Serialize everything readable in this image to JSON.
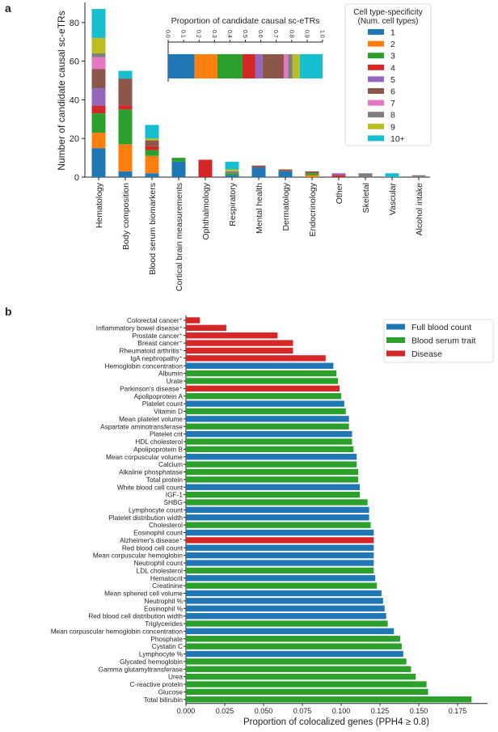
{
  "chart_data": [
    {
      "panel_label": "a",
      "type": "bar",
      "stacked": true,
      "ylabel": "Number of candidate causal sc-eTRs",
      "ylim": [
        0,
        90
      ],
      "yticks": [
        "0",
        "20",
        "40",
        "60",
        "80"
      ],
      "categories": [
        "Hematology",
        "Body composition",
        "Blood serum biomarkers",
        "Cortical brain measurements",
        "Ophthalmology",
        "Respiratory",
        "Mental health",
        "Dermatology",
        "Endocrinology",
        "Other",
        "Skeletal",
        "Vascular",
        "Alcohol intake"
      ],
      "legend_title": [
        "Cell type-specificity",
        "(Num. cell types)"
      ],
      "legend_position": "top-right",
      "series": [
        {
          "name": "1",
          "color": "#1f77b4",
          "values": [
            15,
            3,
            2,
            8,
            0,
            1,
            5,
            3,
            0,
            0,
            0,
            0,
            0
          ]
        },
        {
          "name": "2",
          "color": "#ff7f0e",
          "values": [
            8,
            14,
            9,
            0,
            0,
            0,
            0,
            0,
            1,
            0,
            0,
            0,
            0
          ]
        },
        {
          "name": "3",
          "color": "#2ca02c",
          "values": [
            10,
            18,
            3,
            2,
            0,
            1,
            0,
            0,
            1,
            0,
            0,
            0,
            0
          ]
        },
        {
          "name": "4",
          "color": "#d62728",
          "values": [
            4,
            2,
            2,
            0,
            9,
            0,
            0,
            0,
            0,
            1,
            0,
            0,
            0
          ]
        },
        {
          "name": "5",
          "color": "#9467bd",
          "values": [
            9,
            0,
            0,
            0,
            0,
            0,
            0,
            0,
            0,
            1,
            0,
            0,
            0
          ]
        },
        {
          "name": "6",
          "color": "#8c564b",
          "values": [
            10,
            14,
            3,
            0,
            0,
            0,
            1,
            1,
            1,
            0,
            0,
            0,
            0
          ]
        },
        {
          "name": "7",
          "color": "#e377c2",
          "values": [
            6,
            0,
            0,
            0,
            0,
            0,
            0,
            0,
            0,
            0,
            0,
            0,
            0
          ]
        },
        {
          "name": "8",
          "color": "#7f7f7f",
          "values": [
            2,
            0,
            0,
            0,
            0,
            1,
            0,
            0,
            0,
            0,
            2,
            0,
            1
          ]
        },
        {
          "name": "9",
          "color": "#bcbd22",
          "values": [
            8,
            0,
            1,
            0,
            0,
            1,
            0,
            0,
            0,
            0,
            0,
            0,
            0
          ]
        },
        {
          "name": "10+",
          "color": "#17becf",
          "values": [
            15,
            4,
            7,
            0,
            0,
            4,
            0,
            0,
            0,
            0,
            0,
            2,
            0
          ]
        }
      ],
      "inset": {
        "type": "bar",
        "title": "Proportion of candidate causal sc-eTRs",
        "xlim": [
          0,
          1
        ],
        "xticks": [
          "0.0",
          "0.1",
          "0.2",
          "0.3",
          "0.4",
          "0.5",
          "0.6",
          "0.7",
          "0.8",
          "0.9",
          "1.0"
        ]
      }
    },
    {
      "panel_label": "b",
      "type": "bar",
      "orientation": "horizontal",
      "xlabel": "Proportion of colocalized genes (PPH4 ≥ 0.8)",
      "xlim": [
        0,
        0.19
      ],
      "xticks": [
        "0.000",
        "0.025",
        "0.050",
        "0.075",
        "0.100",
        "0.125",
        "0.150",
        "0.175"
      ],
      "legend_position": "top-right",
      "groups": [
        {
          "name": "Full blood count",
          "color": "#1f77b4"
        },
        {
          "name": "Blood serum trait",
          "color": "#2ca02c"
        },
        {
          "name": "Disease",
          "color": "#d62728"
        }
      ],
      "bars": [
        {
          "label": "Colorectal cancer⁺",
          "group": 2,
          "value": 0.009
        },
        {
          "label": "Inflammatory bowel disease⁺",
          "group": 2,
          "value": 0.026
        },
        {
          "label": "Prostate cancer⁺",
          "group": 2,
          "value": 0.059
        },
        {
          "label": "Breast cancer⁺",
          "group": 2,
          "value": 0.069
        },
        {
          "label": "Rheumatoid arthritis⁺",
          "group": 2,
          "value": 0.069
        },
        {
          "label": "IgA nephropathy⁺",
          "group": 2,
          "value": 0.09
        },
        {
          "label": "Hemoglobin concentration",
          "group": 0,
          "value": 0.095
        },
        {
          "label": "Albumin",
          "group": 1,
          "value": 0.097
        },
        {
          "label": "Urate",
          "group": 1,
          "value": 0.098
        },
        {
          "label": "Parkinson's disease⁺",
          "group": 2,
          "value": 0.099
        },
        {
          "label": "Apolipoprotein A",
          "group": 1,
          "value": 0.1
        },
        {
          "label": "Platelet count",
          "group": 0,
          "value": 0.102
        },
        {
          "label": "Vitamin D",
          "group": 1,
          "value": 0.103
        },
        {
          "label": "Mean platelet volume",
          "group": 0,
          "value": 0.105
        },
        {
          "label": "Aspartate aminotransferase",
          "group": 1,
          "value": 0.105
        },
        {
          "label": "Platelet crit",
          "group": 0,
          "value": 0.107
        },
        {
          "label": "HDL cholesterol",
          "group": 1,
          "value": 0.107
        },
        {
          "label": "Apolipoprotein B",
          "group": 1,
          "value": 0.108
        },
        {
          "label": "Mean corpuscular volume",
          "group": 0,
          "value": 0.11
        },
        {
          "label": "Calcium",
          "group": 1,
          "value": 0.11
        },
        {
          "label": "Alkaline phosphatase",
          "group": 1,
          "value": 0.111
        },
        {
          "label": "Total protein",
          "group": 1,
          "value": 0.111
        },
        {
          "label": "White blood cell count",
          "group": 0,
          "value": 0.112
        },
        {
          "label": "IGF-1",
          "group": 1,
          "value": 0.112
        },
        {
          "label": "SHBG",
          "group": 1,
          "value": 0.117
        },
        {
          "label": "Lymphocyte count",
          "group": 0,
          "value": 0.118
        },
        {
          "label": "Platelet distribution width",
          "group": 0,
          "value": 0.118
        },
        {
          "label": "Cholesterol",
          "group": 1,
          "value": 0.119
        },
        {
          "label": "Eosinophil count",
          "group": 0,
          "value": 0.121
        },
        {
          "label": "Alzheimer's disease⁺",
          "group": 2,
          "value": 0.121
        },
        {
          "label": "Red blood cell count",
          "group": 0,
          "value": 0.121
        },
        {
          "label": "Mean corpuscular hemoglobin",
          "group": 0,
          "value": 0.121
        },
        {
          "label": "Neutrophil count",
          "group": 0,
          "value": 0.121
        },
        {
          "label": "LDL cholesterol",
          "group": 1,
          "value": 0.121
        },
        {
          "label": "Hematocrit",
          "group": 0,
          "value": 0.122
        },
        {
          "label": "Creatinine",
          "group": 1,
          "value": 0.123
        },
        {
          "label": "Mean sphered cell volume",
          "group": 0,
          "value": 0.126
        },
        {
          "label": "Neutrophil %",
          "group": 0,
          "value": 0.127
        },
        {
          "label": "Eosinophil %",
          "group": 0,
          "value": 0.128
        },
        {
          "label": "Red blood cell distribution width",
          "group": 0,
          "value": 0.129
        },
        {
          "label": "Triglycerides",
          "group": 1,
          "value": 0.13
        },
        {
          "label": "Mean corpuscular hemoglobin concentration",
          "group": 0,
          "value": 0.134
        },
        {
          "label": "Phosphate",
          "group": 1,
          "value": 0.138
        },
        {
          "label": "Cystatin C",
          "group": 1,
          "value": 0.139
        },
        {
          "label": "Lymphocyte %",
          "group": 0,
          "value": 0.14
        },
        {
          "label": "Glycated hemoglobin",
          "group": 1,
          "value": 0.142
        },
        {
          "label": "Gamma glutamyltransferase",
          "group": 1,
          "value": 0.145
        },
        {
          "label": "Urea",
          "group": 1,
          "value": 0.148
        },
        {
          "label": "C-reactive protein",
          "group": 1,
          "value": 0.155
        },
        {
          "label": "Glucose",
          "group": 1,
          "value": 0.156
        },
        {
          "label": "Total bilirubin",
          "group": 1,
          "value": 0.184
        }
      ]
    }
  ]
}
